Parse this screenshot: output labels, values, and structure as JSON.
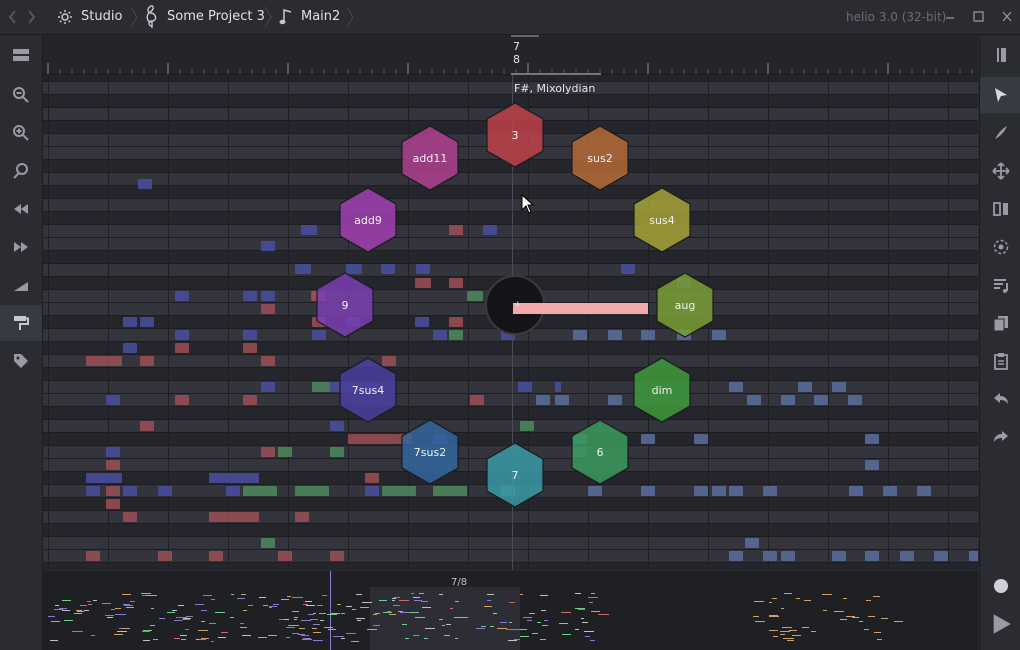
{
  "app": {
    "version_label": "helio 3.0 (32-bit)"
  },
  "breadcrumbs": [
    {
      "label": "Studio",
      "icon": "gear-icon"
    },
    {
      "label": "Some Project 3",
      "icon": "treble-clef-icon"
    },
    {
      "label": "Main2",
      "icon": "note-icon"
    }
  ],
  "window_controls": [
    "minimize",
    "maximize",
    "close"
  ],
  "ruler": {
    "time_signature_top": "7",
    "time_signature_bottom": "8"
  },
  "key_label": "F#, Mixolydian",
  "chord_wheel": {
    "chords": [
      {
        "label": "3",
        "color": "#c0414a"
      },
      {
        "label": "sus2",
        "color": "#b56a36"
      },
      {
        "label": "sus4",
        "color": "#a5a235"
      },
      {
        "label": "aug",
        "color": "#7a9f35"
      },
      {
        "label": "dim",
        "color": "#3f9a3c"
      },
      {
        "label": "6",
        "color": "#3a9a5c"
      },
      {
        "label": "7",
        "color": "#3a99a6"
      },
      {
        "label": "7sus2",
        "color": "#34659f"
      },
      {
        "label": "7sus4",
        "color": "#4b3ea0"
      },
      {
        "label": "9",
        "color": "#7b3fb0"
      },
      {
        "label": "add9",
        "color": "#a03fb0"
      },
      {
        "label": "add11",
        "color": "#b03f8f"
      }
    ],
    "center_label": "+"
  },
  "minimap": {
    "time_signature": "7/8"
  },
  "left_sidebar": [
    "layout-icon",
    "zoom-out-icon",
    "zoom-in-icon",
    "zoom-fit-icon",
    "rewind-icon",
    "fast-forward-icon",
    "velocity-icon",
    "paint-roller-icon",
    "tag-icon"
  ],
  "right_sidebar": [
    "panel-toggle-icon",
    "cursor-icon",
    "pen-icon",
    "move-icon",
    "mirror-icon",
    "chord-tool-icon",
    "arpeggio-icon",
    "copy-icon",
    "paste-icon",
    "undo-icon",
    "redo-icon",
    "record-icon",
    "play-icon"
  ]
}
